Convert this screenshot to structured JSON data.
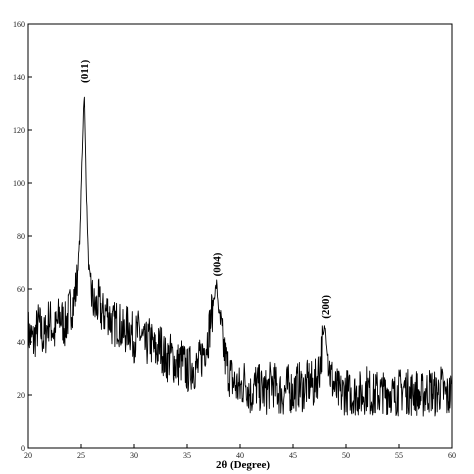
{
  "chart_data": {
    "type": "line",
    "title": "",
    "xlabel": "2θ (Degree)",
    "ylabel": "",
    "xlim": [
      20,
      60
    ],
    "ylim": [
      0,
      160
    ],
    "grid": false,
    "legend": "none",
    "line_color": "#000000",
    "x_ticks": [
      20,
      25,
      30,
      35,
      40,
      45,
      50,
      55,
      60
    ],
    "y_ticks": [
      0,
      20,
      40,
      60,
      80,
      100,
      120,
      140,
      160
    ],
    "annotations": [
      {
        "text": "(011)",
        "x": 25.3,
        "y": 137
      },
      {
        "text": "(004)",
        "x": 37.8,
        "y": 64
      },
      {
        "text": "(200)",
        "x": 48.0,
        "y": 48
      }
    ],
    "series": [
      {
        "x": [
          20.0,
          20.5,
          21.0,
          21.5,
          22.0,
          22.5,
          23.0,
          23.5,
          24.0,
          24.3,
          24.6,
          24.9,
          25.1,
          25.3,
          25.5,
          25.7,
          26.0,
          26.3,
          26.7,
          27.0,
          27.5,
          28.0,
          28.5,
          29.0,
          29.5,
          30.0,
          30.5,
          31.0,
          31.5,
          32.0,
          32.5,
          33.0,
          33.5,
          34.0,
          34.5,
          35.0,
          35.5,
          36.0,
          36.5,
          37.0,
          37.3,
          37.6,
          37.8,
          38.0,
          38.3,
          38.6,
          39.0,
          39.5,
          40.0,
          40.5,
          41.0,
          41.5,
          42.0,
          42.5,
          43.0,
          43.5,
          44.0,
          44.5,
          45.0,
          45.5,
          46.0,
          46.5,
          47.0,
          47.5,
          47.8,
          48.0,
          48.2,
          48.5,
          49.0,
          49.5,
          50.0,
          50.5,
          51.0,
          51.5,
          52.0,
          52.5,
          53.0,
          53.5,
          54.0,
          54.5,
          55.0,
          55.5,
          56.0,
          56.5,
          57.0,
          57.5,
          58.0,
          58.5,
          59.0,
          59.5,
          60.0
        ],
        "values": [
          44,
          40,
          47,
          41,
          49,
          43,
          50,
          46,
          53,
          55,
          62,
          80,
          110,
          135,
          98,
          70,
          58,
          52,
          55,
          50,
          52,
          46,
          48,
          43,
          46,
          41,
          44,
          38,
          41,
          36,
          39,
          33,
          35,
          31,
          33,
          29,
          31,
          30,
          36,
          42,
          50,
          58,
          62,
          52,
          42,
          34,
          28,
          24,
          22,
          26,
          20,
          24,
          22,
          21,
          25,
          22,
          20,
          23,
          21,
          24,
          22,
          25,
          23,
          30,
          40,
          46,
          38,
          28,
          22,
          20,
          22,
          19,
          21,
          20,
          23,
          19,
          21,
          20,
          22,
          19,
          21,
          23,
          20,
          22,
          19,
          21,
          22,
          20,
          23,
          19,
          21
        ]
      }
    ]
  }
}
